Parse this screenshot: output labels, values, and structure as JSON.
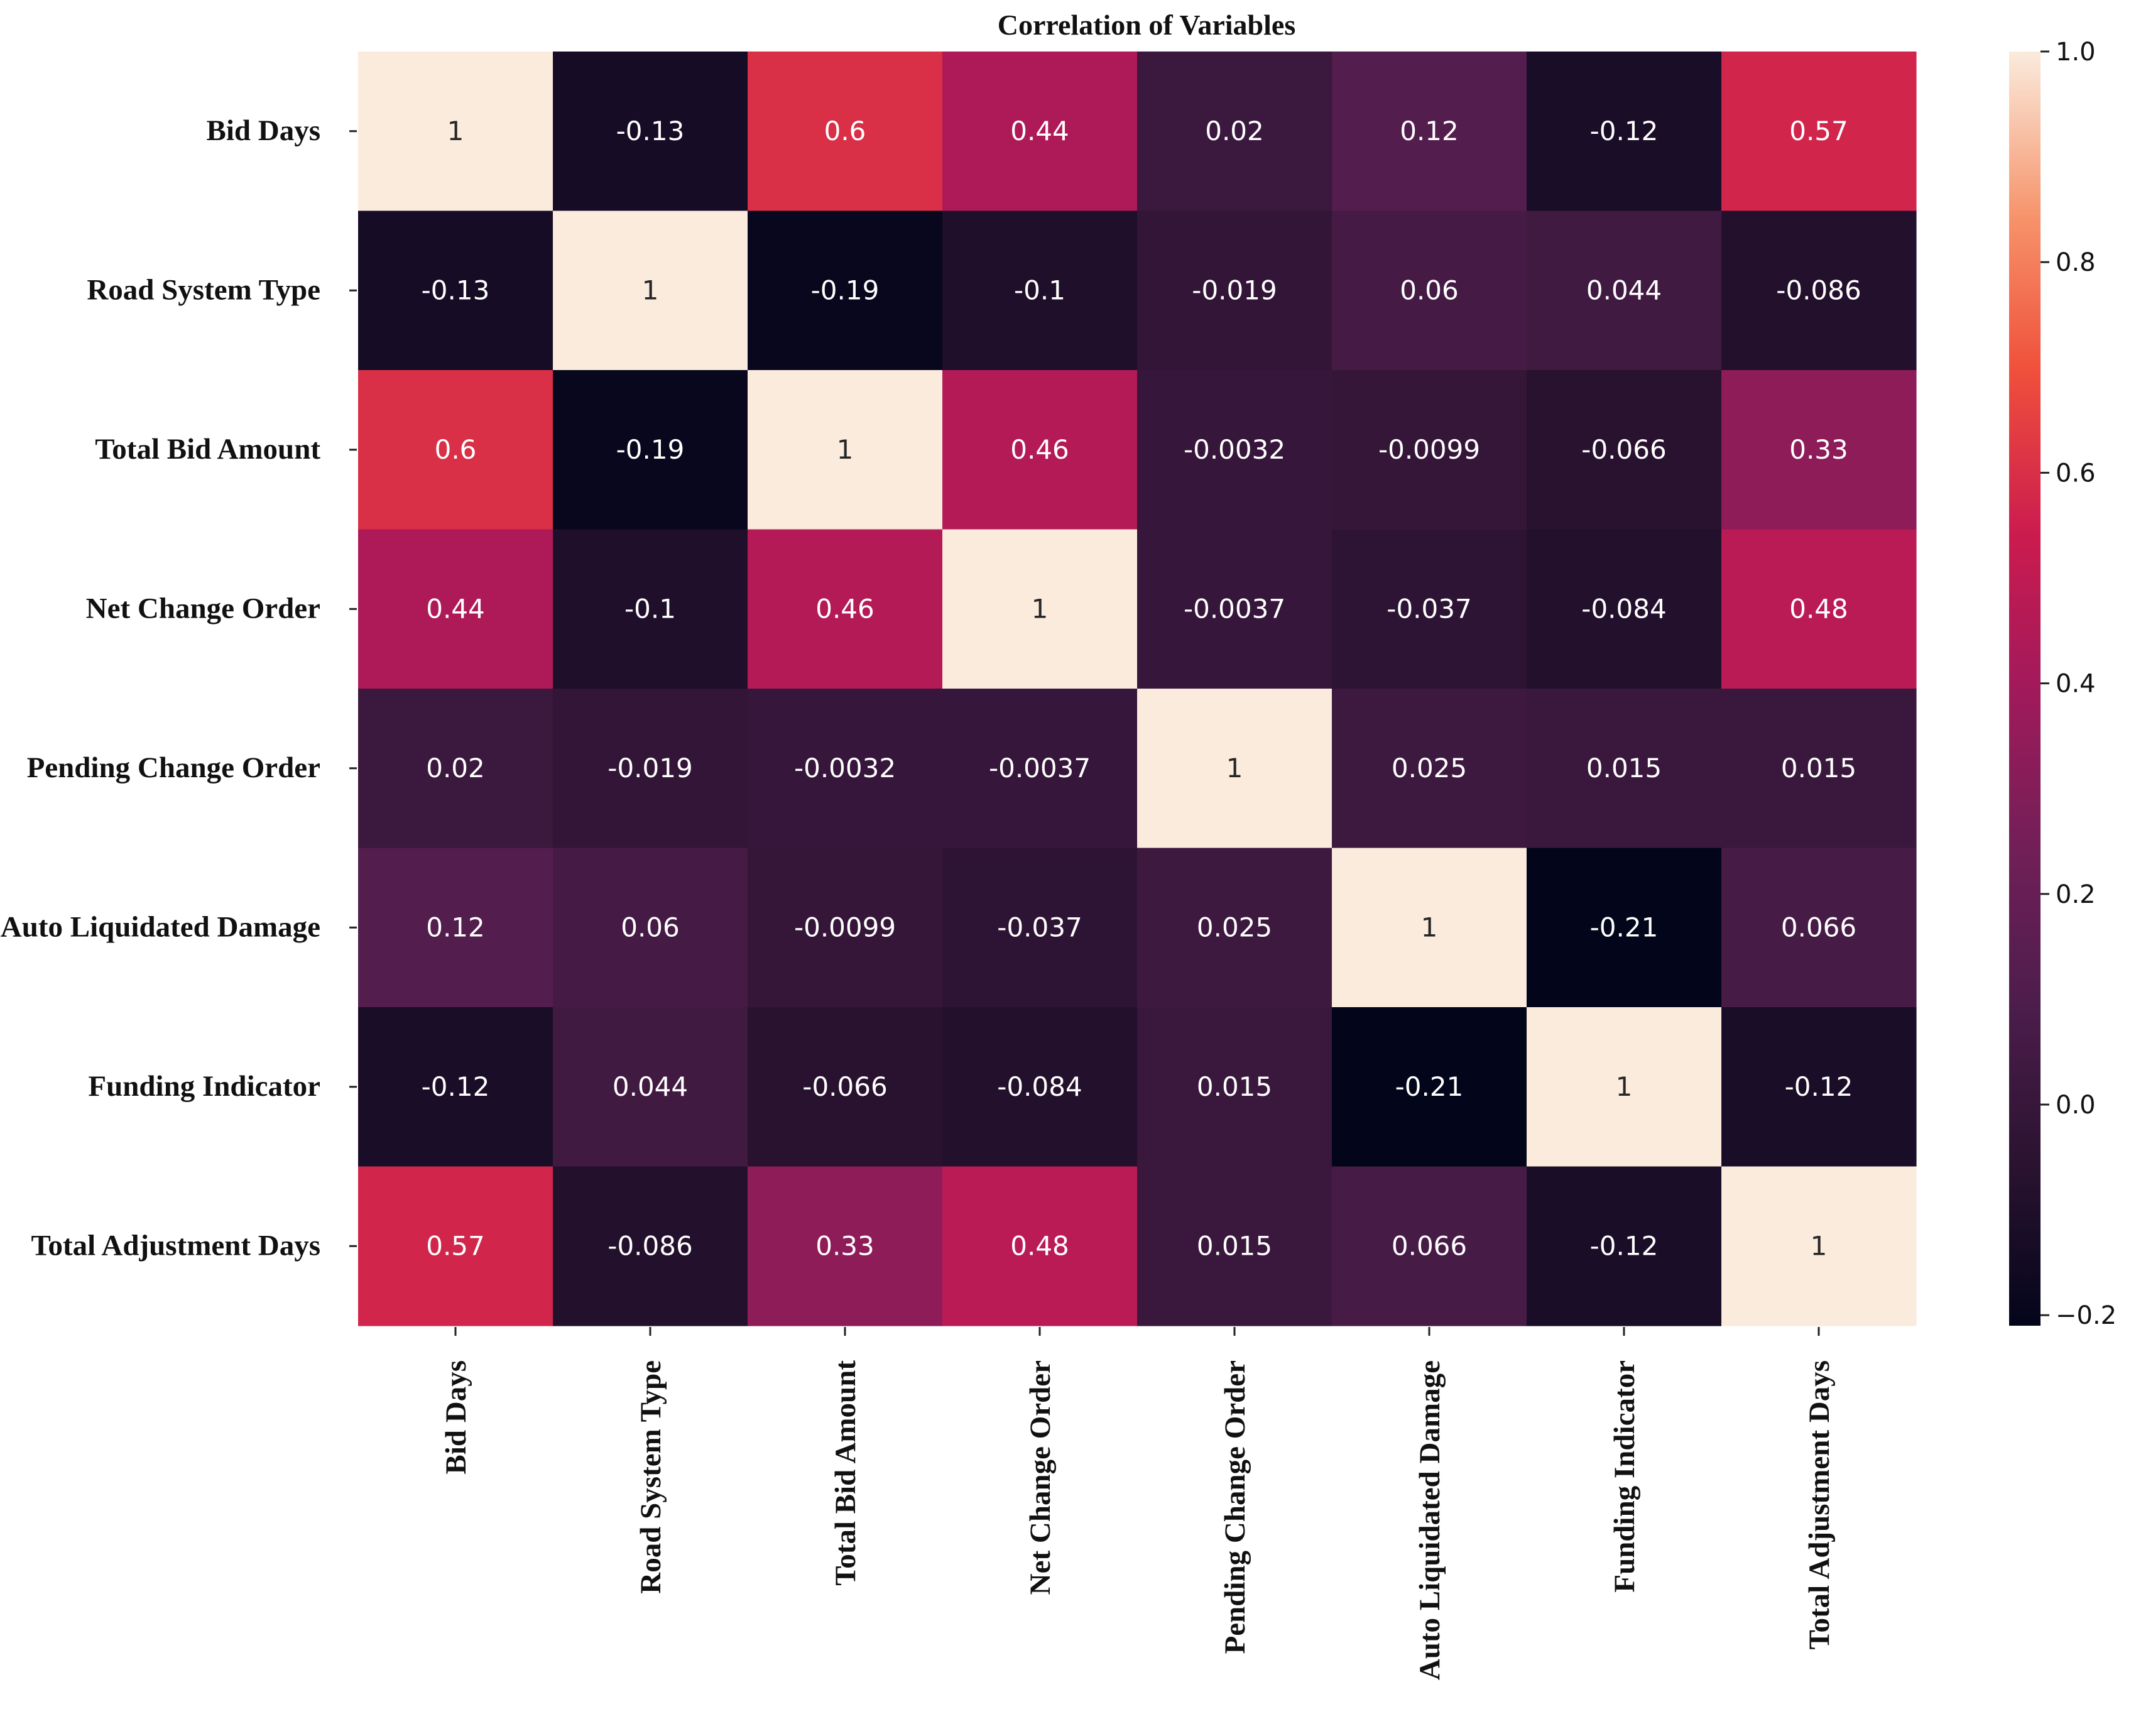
{
  "chart_data": {
    "type": "heatmap",
    "title": "Correlation of Variables",
    "xlabel": "",
    "ylabel": "",
    "variables": [
      "Bid Days",
      "Road System Type",
      "Total Bid Amount",
      "Net Change Order",
      "Pending Change Order",
      "Auto Liquidated Damage",
      "Funding Indicator",
      "Total Adjustment Days"
    ],
    "matrix": [
      [
        1,
        -0.13,
        0.6,
        0.44,
        0.02,
        0.12,
        -0.12,
        0.57
      ],
      [
        -0.13,
        1,
        -0.19,
        -0.1,
        -0.019,
        0.06,
        0.044,
        -0.086
      ],
      [
        0.6,
        -0.19,
        1,
        0.46,
        -0.0032,
        -0.0099,
        -0.066,
        0.33
      ],
      [
        0.44,
        -0.1,
        0.46,
        1,
        -0.0037,
        -0.037,
        -0.084,
        0.48
      ],
      [
        0.02,
        -0.019,
        -0.0032,
        -0.0037,
        1,
        0.025,
        0.015,
        0.015
      ],
      [
        0.12,
        0.06,
        -0.0099,
        -0.037,
        0.025,
        1,
        -0.21,
        0.066
      ],
      [
        -0.12,
        0.044,
        -0.066,
        -0.084,
        0.015,
        -0.21,
        1,
        -0.12
      ],
      [
        0.57,
        -0.086,
        0.33,
        0.48,
        0.015,
        0.066,
        -0.12,
        1
      ]
    ],
    "annotations": [
      [
        "1",
        "-0.13",
        "0.6",
        "0.44",
        "0.02",
        "0.12",
        "-0.12",
        "0.57"
      ],
      [
        "-0.13",
        "1",
        "-0.19",
        "-0.1",
        "-0.019",
        "0.06",
        "0.044",
        "-0.086"
      ],
      [
        "0.6",
        "-0.19",
        "1",
        "0.46",
        "-0.0032",
        "-0.0099",
        "-0.066",
        "0.33"
      ],
      [
        "0.44",
        "-0.1",
        "0.46",
        "1",
        "-0.0037",
        "-0.037",
        "-0.084",
        "0.48"
      ],
      [
        "0.02",
        "-0.019",
        "-0.0032",
        "-0.0037",
        "1",
        "0.025",
        "0.015",
        "0.015"
      ],
      [
        "0.12",
        "0.06",
        "-0.0099",
        "-0.037",
        "0.025",
        "1",
        "-0.21",
        "0.066"
      ],
      [
        "-0.12",
        "0.044",
        "-0.066",
        "-0.084",
        "0.015",
        "-0.21",
        "1",
        "-0.12"
      ],
      [
        "0.57",
        "-0.086",
        "0.33",
        "0.48",
        "0.015",
        "0.066",
        "-0.12",
        "1"
      ]
    ],
    "colorbar": {
      "range": [
        -0.21,
        1.0
      ],
      "ticks": [
        1.0,
        0.8,
        0.6,
        0.4,
        0.2,
        0.0,
        -0.2
      ],
      "tick_labels": [
        "1.0",
        "0.8",
        "0.6",
        "0.4",
        "0.2",
        "0.0",
        "−0.2"
      ],
      "colormap": "rocket",
      "color_stops": [
        {
          "value": 0.0,
          "color": "#03051a"
        },
        {
          "value": 0.12,
          "color": "#28122f"
        },
        {
          "value": 0.25,
          "color": "#4c1d4b"
        },
        {
          "value": 0.37,
          "color": "#701f57"
        },
        {
          "value": 0.5,
          "color": "#a11a5b"
        },
        {
          "value": 0.62,
          "color": "#cb1b4f"
        },
        {
          "value": 0.75,
          "color": "#f0503b"
        },
        {
          "value": 0.87,
          "color": "#f6936b"
        },
        {
          "value": 1.0,
          "color": "#faebdd"
        }
      ]
    },
    "legend_position": "right"
  }
}
